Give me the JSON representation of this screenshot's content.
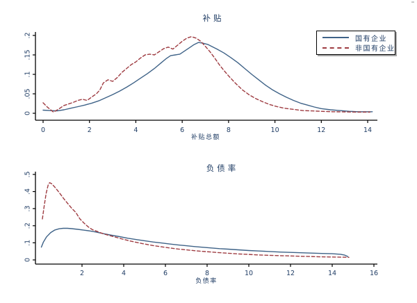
{
  "chart_data": [
    {
      "type": "line",
      "title": "补贴",
      "xlabel": "补贴总额",
      "xlim": [
        0,
        14.4
      ],
      "ylim": [
        0,
        0.2
      ],
      "x_ticks": [
        0,
        2,
        4,
        6,
        8,
        10,
        12,
        14
      ],
      "x_tick_labels": [
        "0",
        "2",
        "4",
        "6",
        "8",
        "10",
        "12",
        "14"
      ],
      "y_ticks": [
        0,
        0.05,
        0.1,
        0.15,
        0.2
      ],
      "y_tick_labels": [
        "0",
        ".05",
        ".1",
        ".15",
        ".2"
      ],
      "grid": false,
      "legend_position": "top-right",
      "series": [
        {
          "name": "国有企业",
          "color": "#3e6287",
          "style": "solid",
          "points": [
            [
              0,
              0.008
            ],
            [
              0.3,
              0.007
            ],
            [
              0.6,
              0.006
            ],
            [
              0.9,
              0.009
            ],
            [
              1.2,
              0.013
            ],
            [
              1.5,
              0.017
            ],
            [
              1.8,
              0.021
            ],
            [
              2.1,
              0.026
            ],
            [
              2.4,
              0.032
            ],
            [
              2.7,
              0.04
            ],
            [
              3.0,
              0.048
            ],
            [
              3.3,
              0.057
            ],
            [
              3.6,
              0.067
            ],
            [
              3.9,
              0.078
            ],
            [
              4.2,
              0.09
            ],
            [
              4.5,
              0.102
            ],
            [
              4.8,
              0.115
            ],
            [
              5.1,
              0.13
            ],
            [
              5.3,
              0.14
            ],
            [
              5.5,
              0.148
            ],
            [
              5.7,
              0.15
            ],
            [
              5.9,
              0.152
            ],
            [
              6.1,
              0.16
            ],
            [
              6.3,
              0.168
            ],
            [
              6.5,
              0.176
            ],
            [
              6.7,
              0.182
            ],
            [
              6.9,
              0.18
            ],
            [
              7.1,
              0.177
            ],
            [
              7.3,
              0.171
            ],
            [
              7.5,
              0.165
            ],
            [
              7.8,
              0.155
            ],
            [
              8.1,
              0.143
            ],
            [
              8.4,
              0.13
            ],
            [
              8.7,
              0.115
            ],
            [
              9.0,
              0.1
            ],
            [
              9.3,
              0.086
            ],
            [
              9.6,
              0.072
            ],
            [
              9.9,
              0.06
            ],
            [
              10.2,
              0.05
            ],
            [
              10.5,
              0.041
            ],
            [
              10.8,
              0.033
            ],
            [
              11.1,
              0.026
            ],
            [
              11.4,
              0.021
            ],
            [
              11.7,
              0.016
            ],
            [
              12.0,
              0.012
            ],
            [
              12.4,
              0.009
            ],
            [
              12.8,
              0.007
            ],
            [
              13.2,
              0.005
            ],
            [
              13.6,
              0.004
            ],
            [
              14.2,
              0.004
            ]
          ]
        },
        {
          "name": "非国有企业",
          "color": "#9e3b41",
          "style": "dashed",
          "points": [
            [
              0,
              0.027
            ],
            [
              0.2,
              0.015
            ],
            [
              0.45,
              0.003
            ],
            [
              0.7,
              0.012
            ],
            [
              0.9,
              0.02
            ],
            [
              1.1,
              0.024
            ],
            [
              1.3,
              0.028
            ],
            [
              1.5,
              0.033
            ],
            [
              1.7,
              0.036
            ],
            [
              1.9,
              0.033
            ],
            [
              2.1,
              0.042
            ],
            [
              2.3,
              0.05
            ],
            [
              2.45,
              0.06
            ],
            [
              2.6,
              0.078
            ],
            [
              2.8,
              0.086
            ],
            [
              3.0,
              0.082
            ],
            [
              3.2,
              0.092
            ],
            [
              3.4,
              0.105
            ],
            [
              3.6,
              0.115
            ],
            [
              3.8,
              0.125
            ],
            [
              4.0,
              0.132
            ],
            [
              4.2,
              0.142
            ],
            [
              4.4,
              0.15
            ],
            [
              4.6,
              0.152
            ],
            [
              4.8,
              0.15
            ],
            [
              5.0,
              0.158
            ],
            [
              5.2,
              0.166
            ],
            [
              5.4,
              0.17
            ],
            [
              5.6,
              0.165
            ],
            [
              5.8,
              0.175
            ],
            [
              6.0,
              0.185
            ],
            [
              6.2,
              0.193
            ],
            [
              6.4,
              0.197
            ],
            [
              6.6,
              0.193
            ],
            [
              6.8,
              0.185
            ],
            [
              7.0,
              0.172
            ],
            [
              7.2,
              0.158
            ],
            [
              7.4,
              0.142
            ],
            [
              7.6,
              0.125
            ],
            [
              7.8,
              0.11
            ],
            [
              8.0,
              0.096
            ],
            [
              8.3,
              0.077
            ],
            [
              8.6,
              0.06
            ],
            [
              8.9,
              0.047
            ],
            [
              9.2,
              0.037
            ],
            [
              9.5,
              0.029
            ],
            [
              9.8,
              0.022
            ],
            [
              10.1,
              0.017
            ],
            [
              10.4,
              0.013
            ],
            [
              10.8,
              0.01
            ],
            [
              11.2,
              0.007
            ],
            [
              11.6,
              0.006
            ],
            [
              12.0,
              0.005
            ],
            [
              12.5,
              0.004
            ],
            [
              13.0,
              0.0035
            ],
            [
              13.5,
              0.003
            ],
            [
              14.1,
              0.003
            ]
          ]
        }
      ]
    },
    {
      "type": "line",
      "title": "负债率",
      "xlabel": "负债率",
      "xlim": [
        0,
        16.2
      ],
      "ylim": [
        0,
        0.5
      ],
      "x_ticks": [
        2,
        4,
        6,
        8,
        10,
        12,
        14,
        16
      ],
      "x_tick_labels": [
        "2",
        "4",
        "6",
        "8",
        "10",
        "12",
        "14",
        "16"
      ],
      "y_ticks": [
        0,
        0.1,
        0.2,
        0.3,
        0.4,
        0.5
      ],
      "y_tick_labels": [
        "0",
        ".1",
        ".2",
        ".3",
        ".4",
        ".5"
      ],
      "grid": false,
      "legend_position": "none",
      "series": [
        {
          "name": "国有企业",
          "color": "#3e6287",
          "style": "solid",
          "points": [
            [
              0.05,
              0.075
            ],
            [
              0.15,
              0.105
            ],
            [
              0.3,
              0.135
            ],
            [
              0.5,
              0.16
            ],
            [
              0.7,
              0.175
            ],
            [
              0.9,
              0.182
            ],
            [
              1.1,
              0.185
            ],
            [
              1.3,
              0.185
            ],
            [
              1.5,
              0.183
            ],
            [
              1.8,
              0.179
            ],
            [
              2.1,
              0.174
            ],
            [
              2.4,
              0.169
            ],
            [
              2.7,
              0.162
            ],
            [
              3.0,
              0.154
            ],
            [
              3.4,
              0.145
            ],
            [
              3.8,
              0.136
            ],
            [
              4.2,
              0.127
            ],
            [
              4.6,
              0.119
            ],
            [
              5.0,
              0.112
            ],
            [
              5.4,
              0.105
            ],
            [
              5.8,
              0.099
            ],
            [
              6.2,
              0.093
            ],
            [
              6.6,
              0.088
            ],
            [
              7.0,
              0.083
            ],
            [
              7.4,
              0.078
            ],
            [
              7.8,
              0.074
            ],
            [
              8.2,
              0.07
            ],
            [
              8.6,
              0.066
            ],
            [
              9.0,
              0.063
            ],
            [
              9.5,
              0.059
            ],
            [
              10.0,
              0.055
            ],
            [
              10.5,
              0.052
            ],
            [
              11.0,
              0.049
            ],
            [
              11.5,
              0.046
            ],
            [
              12.0,
              0.044
            ],
            [
              12.5,
              0.042
            ],
            [
              13.0,
              0.04
            ],
            [
              13.5,
              0.038
            ],
            [
              14.0,
              0.036
            ],
            [
              14.4,
              0.033
            ],
            [
              14.6,
              0.028
            ],
            [
              14.75,
              0.02
            ]
          ]
        },
        {
          "name": "非国有企业",
          "color": "#9e3b41",
          "style": "dashed",
          "points": [
            [
              0.1,
              0.24
            ],
            [
              0.18,
              0.31
            ],
            [
              0.28,
              0.39
            ],
            [
              0.38,
              0.44
            ],
            [
              0.45,
              0.452
            ],
            [
              0.55,
              0.445
            ],
            [
              0.7,
              0.425
            ],
            [
              0.9,
              0.395
            ],
            [
              1.1,
              0.362
            ],
            [
              1.3,
              0.332
            ],
            [
              1.5,
              0.303
            ],
            [
              1.7,
              0.278
            ],
            [
              1.9,
              0.24
            ],
            [
              2.1,
              0.215
            ],
            [
              2.3,
              0.193
            ],
            [
              2.5,
              0.177
            ],
            [
              2.7,
              0.168
            ],
            [
              2.9,
              0.158
            ],
            [
              3.1,
              0.15
            ],
            [
              3.4,
              0.14
            ],
            [
              3.7,
              0.13
            ],
            [
              4.0,
              0.12
            ],
            [
              4.3,
              0.111
            ],
            [
              4.6,
              0.103
            ],
            [
              5.0,
              0.093
            ],
            [
              5.4,
              0.084
            ],
            [
              5.8,
              0.077
            ],
            [
              6.2,
              0.07
            ],
            [
              6.6,
              0.064
            ],
            [
              7.0,
              0.059
            ],
            [
              7.5,
              0.053
            ],
            [
              8.0,
              0.048
            ],
            [
              8.5,
              0.043
            ],
            [
              9.0,
              0.039
            ],
            [
              9.5,
              0.035
            ],
            [
              10.0,
              0.032
            ],
            [
              10.5,
              0.029
            ],
            [
              11.0,
              0.027
            ],
            [
              11.5,
              0.025
            ],
            [
              12.0,
              0.023
            ],
            [
              12.5,
              0.021
            ],
            [
              13.0,
              0.02
            ],
            [
              13.5,
              0.018
            ],
            [
              14.0,
              0.017
            ],
            [
              14.5,
              0.016
            ],
            [
              14.8,
              0.015
            ]
          ]
        }
      ]
    }
  ],
  "legend": {
    "entries": [
      {
        "label": "国有企业",
        "line": "solid-blue"
      },
      {
        "label": "非国有企业",
        "line": "dashed-red"
      }
    ]
  },
  "colors": {
    "series_blue": "#3e6287",
    "series_red": "#9e3b41",
    "text_navy": "#1f3c64",
    "axis": "#000000"
  }
}
